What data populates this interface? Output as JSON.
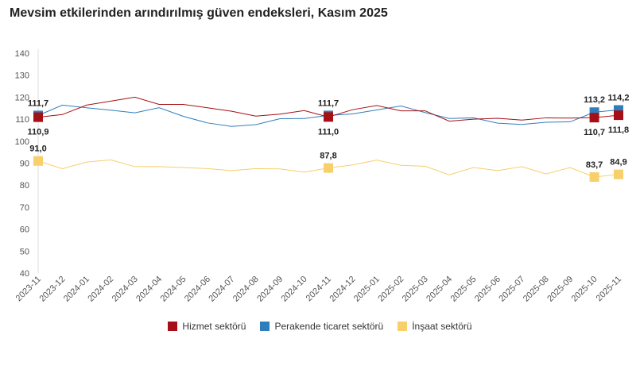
{
  "chart_data": {
    "type": "line",
    "title": "Mevsim etkilerinden arındırılmış güven endeksleri, Kasım 2025",
    "categories": [
      "2023-11",
      "2023-12",
      "2024-01",
      "2024-02",
      "2024-03",
      "2024-04",
      "2024-05",
      "2024-06",
      "2024-07",
      "2024-08",
      "2024-09",
      "2024-10",
      "2024-11",
      "2024-12",
      "2025-01",
      "2025-02",
      "2025-03",
      "2025-04",
      "2025-05",
      "2025-06",
      "2025-07",
      "2025-08",
      "2025-09",
      "2025-10",
      "2025-11"
    ],
    "ylim": [
      40,
      140
    ],
    "yticks": [
      40,
      50,
      60,
      70,
      80,
      90,
      100,
      110,
      120,
      130,
      140
    ],
    "grid": false,
    "legend": "bottom",
    "labeled_points": [
      "2023-11",
      "2024-11",
      "2025-10",
      "2025-11"
    ],
    "series": [
      {
        "name": "Hizmet sektörü",
        "color": "#a50f15",
        "label_pos": "below",
        "values": [
          110.9,
          112.1,
          116.4,
          118.2,
          120.0,
          116.7,
          116.7,
          115.2,
          113.6,
          111.4,
          112.3,
          113.9,
          111.0,
          114.3,
          116.2,
          113.8,
          113.8,
          109.1,
          110.0,
          110.4,
          109.6,
          110.6,
          110.5,
          110.7,
          111.8
        ],
        "labels": [
          "110,9",
          "111,0",
          "110,7",
          "111,8"
        ]
      },
      {
        "name": "Perakende ticaret sektörü",
        "color": "#2f7ebc",
        "label_pos": "above",
        "values": [
          111.7,
          116.4,
          115.2,
          114.1,
          112.9,
          115.2,
          111.3,
          108.3,
          106.7,
          107.5,
          110.2,
          110.3,
          111.7,
          112.4,
          114.2,
          116.0,
          113.0,
          110.3,
          110.6,
          108.2,
          107.6,
          108.6,
          108.8,
          113.2,
          114.2
        ],
        "labels": [
          "111,7",
          "111,7",
          "113,2",
          "114,2"
        ]
      },
      {
        "name": "İnşaat sektörü",
        "color": "#f7cf6b",
        "label_pos": "above",
        "values": [
          91.0,
          87.5,
          90.5,
          91.5,
          88.4,
          88.4,
          88.0,
          87.5,
          86.6,
          87.5,
          87.4,
          85.9,
          87.8,
          89.2,
          91.4,
          89.0,
          88.6,
          84.7,
          88.0,
          86.6,
          88.4,
          85.1,
          88.0,
          83.7,
          84.9
        ],
        "labels": [
          "91,0",
          "87,8",
          "83,7",
          "84,9"
        ]
      }
    ]
  }
}
